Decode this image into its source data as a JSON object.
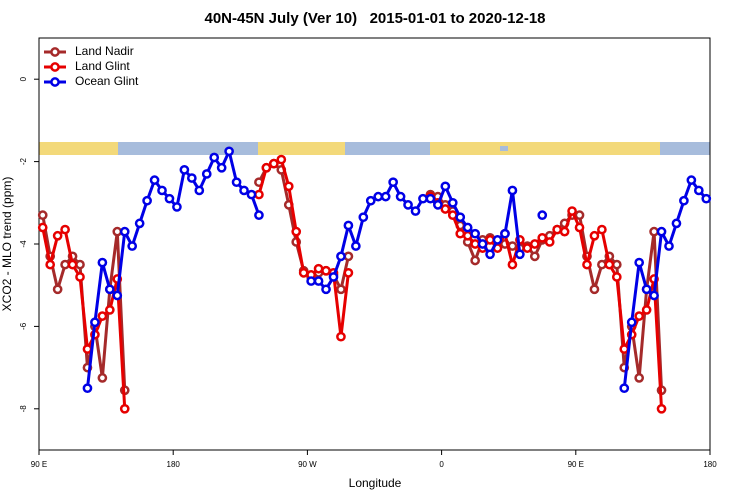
{
  "chart_data": {
    "type": "line",
    "title": "40N-45N July (Ver 10)   2015-01-01 to 2020-12-18",
    "x_label": "Longitude",
    "y_label": "XCO2 - MLO trend (ppm)",
    "xlim": [
      90,
      540
    ],
    "xticks": [
      {
        "value": 90,
        "label": "90 E"
      },
      180,
      {
        "value": 270,
        "label": "90 W"
      },
      {
        "value": 360,
        "label": "0"
      },
      {
        "value": 450,
        "label": "90 E"
      },
      {
        "value": 540,
        "label": "180"
      }
    ],
    "ylim": [
      -9,
      1
    ],
    "yticks": [
      0,
      -2,
      -4,
      -6,
      -8
    ],
    "legend": "top-left",
    "x": [
      92.5,
      97.5,
      102.5,
      107.5,
      112.5,
      117.5,
      122.5,
      127.5,
      132.5,
      137.5,
      142.5,
      147.5,
      152.5,
      157.5,
      162.5,
      167.5,
      172.5,
      177.5,
      182.5,
      187.5,
      192.5,
      197.5,
      202.5,
      207.5,
      212.5,
      217.5,
      222.5,
      227.5,
      232.5,
      237.5,
      242.5,
      247.5,
      252.5,
      257.5,
      262.5,
      267.5,
      272.5,
      277.5,
      282.5,
      287.5,
      292.5,
      297.5,
      302.5,
      307.5,
      312.5,
      317.5,
      322.5,
      327.5,
      332.5,
      337.5,
      342.5,
      347.5,
      352.5,
      357.5,
      362.5,
      367.5,
      372.5,
      377.5,
      382.5,
      387.5,
      392.5,
      397.5,
      402.5,
      407.5,
      412.5,
      417.5,
      422.5,
      427.5,
      432.5,
      437.5,
      442.5,
      447.5,
      452.5,
      457.5,
      462.5,
      467.5,
      472.5,
      477.5,
      482.5,
      487.5,
      492.5,
      497.5,
      502.5,
      507.5,
      512.5,
      517.5,
      522.5,
      527.5,
      532.5,
      537.5
    ],
    "series": [
      {
        "name": "Land Nadir",
        "color": "#a52a2a",
        "values": [
          -3.3,
          -4.3,
          -5.1,
          -4.5,
          -4.3,
          -4.5,
          -7.0,
          -6.0,
          -7.25,
          -5.1,
          -3.7,
          -7.55,
          null,
          null,
          null,
          null,
          null,
          null,
          null,
          null,
          null,
          null,
          null,
          null,
          null,
          null,
          null,
          null,
          null,
          -2.5,
          -2.15,
          -2.05,
          -2.2,
          -3.05,
          -3.95,
          -4.65,
          -4.8,
          -4.7,
          -4.65,
          -4.75,
          -5.1,
          -4.3,
          null,
          null,
          null,
          null,
          null,
          null,
          null,
          null,
          null,
          null,
          -2.8,
          -2.85,
          -3.05,
          -3.2,
          -3.55,
          -3.95,
          -4.4,
          -3.9,
          -3.85,
          -4.0,
          -4.0,
          -4.05,
          -4.1,
          -4.05,
          -4.3,
          -3.9,
          -3.8,
          -3.65,
          -3.5,
          -3.3,
          -3.3,
          -4.3,
          -5.1,
          -4.5,
          -4.3,
          -4.5,
          -7.0,
          -6.0,
          -7.25,
          -5.1,
          -3.7,
          -7.55,
          null,
          null,
          null,
          null,
          null,
          null
        ]
      },
      {
        "name": "Land Glint",
        "color": "#e60000",
        "values": [
          -3.6,
          -4.5,
          -3.8,
          -3.65,
          -4.5,
          -4.8,
          -6.55,
          -6.2,
          -5.75,
          -5.6,
          -4.85,
          -8.0,
          null,
          null,
          null,
          null,
          null,
          null,
          null,
          null,
          null,
          null,
          null,
          null,
          null,
          null,
          null,
          null,
          null,
          -2.8,
          -2.15,
          -2.05,
          -1.95,
          -2.6,
          -3.7,
          -4.7,
          -4.75,
          -4.6,
          -4.65,
          -4.7,
          -6.25,
          -4.7,
          null,
          null,
          null,
          null,
          null,
          null,
          null,
          null,
          null,
          null,
          -2.85,
          -3.0,
          -3.15,
          -3.3,
          -3.75,
          -3.8,
          -4.0,
          -4.1,
          -3.9,
          -4.1,
          -3.75,
          -4.5,
          -3.9,
          -4.1,
          -4.0,
          -3.85,
          -3.95,
          -3.65,
          -3.7,
          -3.2,
          -3.6,
          -4.5,
          -3.8,
          -3.65,
          -4.5,
          -4.8,
          -6.55,
          -6.2,
          -5.75,
          -5.6,
          -4.85,
          -8.0,
          null,
          null,
          null,
          null,
          null,
          null
        ]
      },
      {
        "name": "Ocean Glint",
        "color": "#0000e6",
        "values": [
          null,
          null,
          null,
          null,
          null,
          null,
          -7.5,
          -5.9,
          -4.45,
          -5.1,
          -5.25,
          -3.7,
          -4.05,
          -3.5,
          -2.95,
          -2.45,
          -2.7,
          -2.9,
          -3.1,
          -2.2,
          -2.4,
          -2.7,
          -2.3,
          -1.9,
          -2.15,
          -1.75,
          -2.5,
          -2.7,
          -2.8,
          -3.3,
          null,
          null,
          null,
          null,
          null,
          null,
          -4.9,
          -4.9,
          -5.1,
          -4.8,
          -4.3,
          -3.55,
          -4.05,
          -3.35,
          -2.95,
          -2.85,
          -2.85,
          -2.5,
          -2.85,
          -3.05,
          -3.2,
          -2.9,
          -2.9,
          -3.05,
          -2.6,
          -3.0,
          -3.35,
          -3.6,
          -3.75,
          -4.0,
          -4.25,
          -3.9,
          -3.75,
          -2.7,
          -4.25,
          null,
          null,
          -3.3,
          null,
          null,
          null,
          null,
          null,
          null,
          null,
          null,
          null,
          null,
          -7.5,
          -5.9,
          -4.45,
          -5.1,
          -5.25,
          -3.7,
          -4.05,
          -3.5,
          -2.95,
          -2.45,
          -2.7,
          -2.9
        ]
      }
    ]
  }
}
